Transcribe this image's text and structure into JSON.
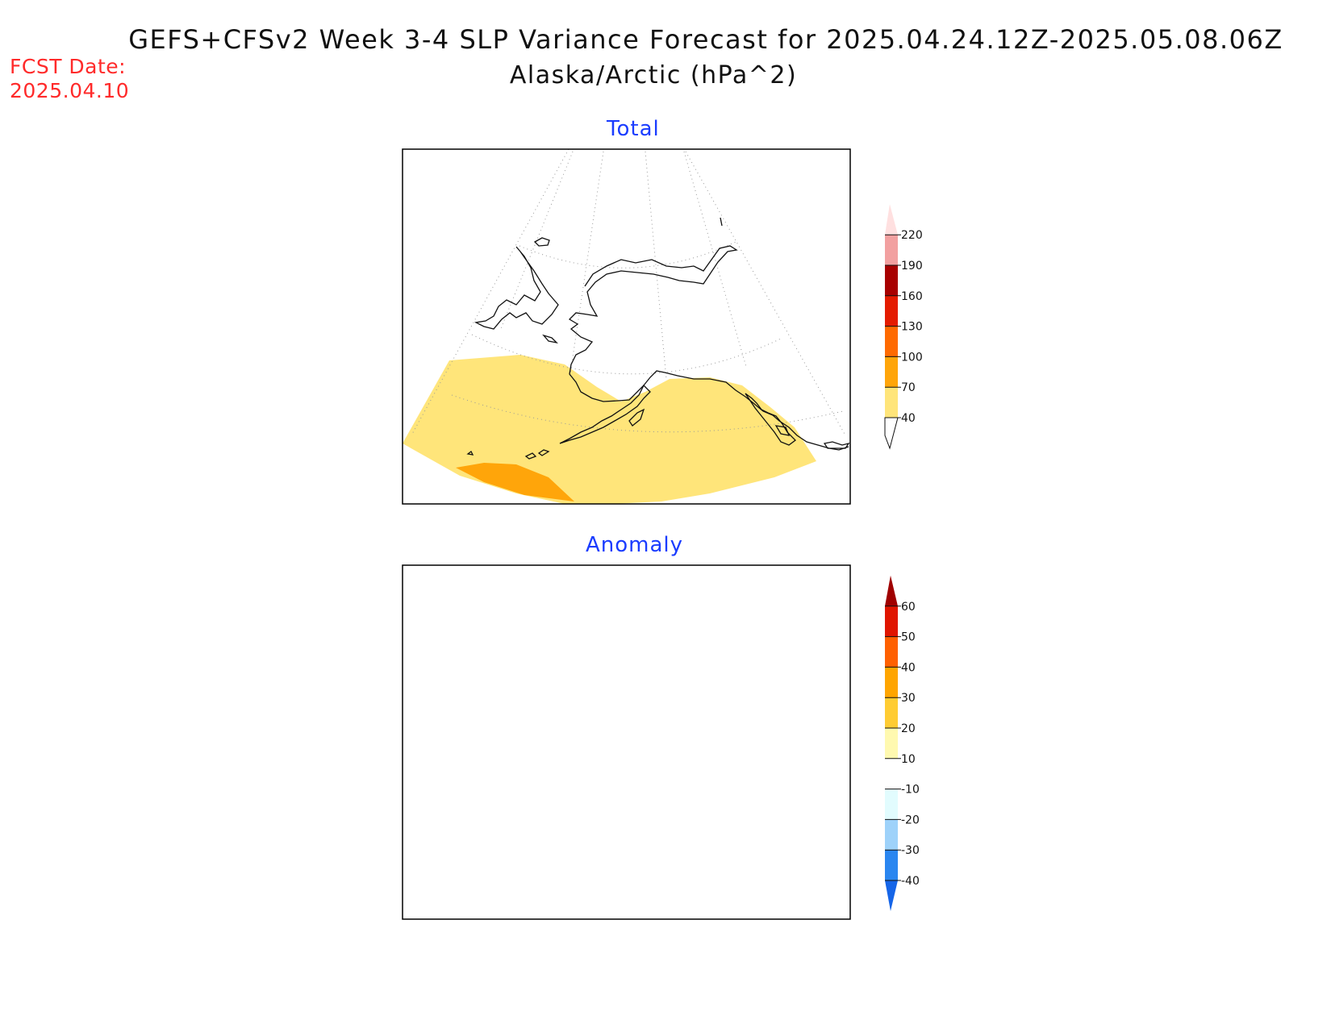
{
  "header": {
    "title": "GEFS+CFSv2 Week 3-4 SLP Variance Forecast for 2025.04.24.12Z-2025.05.08.06Z",
    "subtitle": "Alaska/Arctic (hPa^2)",
    "fcst_label": "FCST Date:",
    "fcst_date": "2025.04.10"
  },
  "panels": [
    {
      "title": "Total",
      "colorbar": {
        "labels": [
          "40",
          "70",
          "100",
          "130",
          "160",
          "190",
          "220"
        ],
        "colors": [
          "#ffe57a",
          "#ffa50a",
          "#ff6a00",
          "#e41b00",
          "#a80000",
          "#f2a0a0",
          "#ffe0e0"
        ]
      }
    },
    {
      "title": "Anomaly",
      "colorbar": {
        "labels": [
          "-40",
          "-30",
          "-20",
          "-10",
          "10",
          "20",
          "30",
          "40",
          "50",
          "60"
        ],
        "colors": [
          "#1565e8",
          "#2a86f0",
          "#9ed2fa",
          "#e2fcfe",
          "#ffffff",
          "#fff9b0",
          "#ffcc33",
          "#ffa500",
          "#ff6000",
          "#e01500",
          "#a00000"
        ]
      }
    }
  ]
}
